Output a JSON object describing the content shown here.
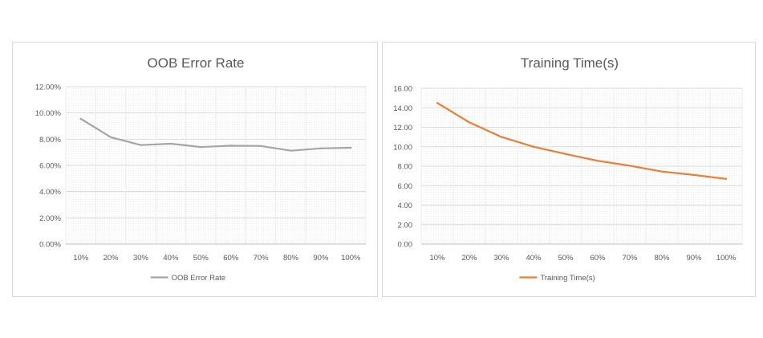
{
  "chart_data": [
    {
      "type": "line",
      "title": "OOB Error Rate",
      "categories": [
        "10%",
        "20%",
        "30%",
        "40%",
        "50%",
        "60%",
        "70%",
        "80%",
        "90%",
        "100%"
      ],
      "series": [
        {
          "name": "OOB Error Rate",
          "color": "#a5a5a5",
          "values": [
            9.55,
            8.15,
            7.55,
            7.65,
            7.4,
            7.5,
            7.48,
            7.12,
            7.3,
            7.35
          ]
        }
      ],
      "yticks": [
        "0.00%",
        "2.00%",
        "4.00%",
        "6.00%",
        "8.00%",
        "10.00%",
        "12.00%"
      ],
      "ylim": [
        0,
        12
      ],
      "grid": true,
      "legend": "bottom"
    },
    {
      "type": "line",
      "title": "Training Time(s)",
      "categories": [
        "10%",
        "20%",
        "30%",
        "40%",
        "50%",
        "60%",
        "70%",
        "80%",
        "90%",
        "100%"
      ],
      "series": [
        {
          "name": "Training Time(s)",
          "color": "#ed7d31",
          "values": [
            14.5,
            12.5,
            11.0,
            10.0,
            9.25,
            8.55,
            8.05,
            7.45,
            7.1,
            6.7
          ]
        }
      ],
      "yticks": [
        "0.00",
        "2.00",
        "4.00",
        "6.00",
        "8.00",
        "10.00",
        "12.00",
        "14.00",
        "16.00"
      ],
      "ylim": [
        0,
        16
      ],
      "grid": true,
      "legend": "bottom"
    }
  ]
}
